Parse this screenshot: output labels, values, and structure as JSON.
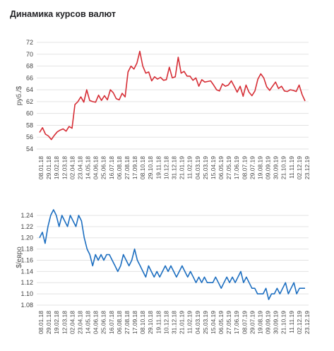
{
  "title": "Динамика курсов валют",
  "chart_data": [
    {
      "type": "line",
      "ylabel": "руб./$",
      "ylim": [
        54,
        72
      ],
      "yticks": [
        54,
        56,
        58,
        60,
        62,
        64,
        66,
        68,
        70,
        72
      ],
      "color": "#d62d35",
      "grid": true,
      "xticks": [
        "08.01.18",
        "29.01.18",
        "19.02.18",
        "12.03.18",
        "02.04.18",
        "23.04.18",
        "14.05.18",
        "04.06.18",
        "25.06.18",
        "16.07.18",
        "06.08.18",
        "27.08.18",
        "17.09.18",
        "08.10.18",
        "29.10.18",
        "19.11.18",
        "10.12.18",
        "31.12.18",
        "21.01.19",
        "11.02.19",
        "04.03.19",
        "25.03.19",
        "15.04.19",
        "06.05.19",
        "27.05.19",
        "17.06.19",
        "08.07.19",
        "29.07.19",
        "19.08.19",
        "09.09.19",
        "30.09.19",
        "21.10.19",
        "11.11.19",
        "02.12.19",
        "23.12.19"
      ],
      "series": [
        {
          "values": [
            56.8,
            57.6,
            56.5,
            56.2,
            55.6,
            56.3,
            56.9,
            57.2,
            57.4,
            57.0,
            57.8,
            57.5,
            61.5,
            62.0,
            62.8,
            61.9,
            64.0,
            62.2,
            62.0,
            61.9,
            63.1,
            62.2,
            63.0,
            62.3,
            64.0,
            63.5,
            62.5,
            62.3,
            63.4,
            62.8,
            67.0,
            68.0,
            67.5,
            68.5,
            70.5,
            68.0,
            66.8,
            67.0,
            65.5,
            66.2,
            65.8,
            66.1,
            65.6,
            65.7,
            67.8,
            66.0,
            66.2,
            69.5,
            66.8,
            67.1,
            66.3,
            66.3,
            65.6,
            66.0,
            64.6,
            65.7,
            65.3,
            65.4,
            65.5,
            64.8,
            64.0,
            63.8,
            65.0,
            64.6,
            64.8,
            65.5,
            64.6,
            63.6,
            64.6,
            62.9,
            64.8,
            63.6,
            63.0,
            63.8,
            65.8,
            66.7,
            66.0,
            64.5,
            63.9,
            64.6,
            65.3,
            64.2,
            64.6,
            63.8,
            63.7,
            64.0,
            63.9,
            63.7,
            64.8,
            63.2,
            62.1
          ]
        }
      ]
    },
    {
      "type": "line",
      "ylabel": "$/евро",
      "ylim": [
        1.08,
        1.25
      ],
      "yticks": [
        1.08,
        1.1,
        1.12,
        1.14,
        1.16,
        1.18,
        1.2,
        1.22,
        1.24
      ],
      "color": "#1c6ec0",
      "grid": true,
      "xticks": [
        "08.01.18",
        "29.01.18",
        "19.02.18",
        "12.03.18",
        "02.04.18",
        "23.04.18",
        "14.05.18",
        "04.06.18",
        "25.06.18",
        "16.07.18",
        "06.08.18",
        "27.08.18",
        "17.09.18",
        "08.10.18",
        "29.10.18",
        "19.11.18",
        "10.12.18",
        "31.12.18",
        "21.01.19",
        "11.02.19",
        "04.03.19",
        "25.03.19",
        "15.04.19",
        "06.05.19",
        "27.05.19",
        "17.06.19",
        "08.07.19",
        "29.07.19",
        "19.08.19",
        "09.09.19",
        "30.09.19",
        "21.10.19",
        "11.11.19",
        "02.12.19",
        "23.12.19"
      ],
      "series": [
        {
          "values": [
            1.2,
            1.21,
            1.19,
            1.22,
            1.24,
            1.25,
            1.24,
            1.22,
            1.24,
            1.23,
            1.22,
            1.24,
            1.23,
            1.22,
            1.24,
            1.23,
            1.2,
            1.18,
            1.17,
            1.15,
            1.17,
            1.16,
            1.17,
            1.16,
            1.17,
            1.17,
            1.16,
            1.15,
            1.14,
            1.15,
            1.17,
            1.16,
            1.15,
            1.16,
            1.18,
            1.16,
            1.15,
            1.14,
            1.13,
            1.15,
            1.14,
            1.13,
            1.14,
            1.13,
            1.14,
            1.15,
            1.14,
            1.15,
            1.14,
            1.13,
            1.14,
            1.15,
            1.14,
            1.13,
            1.14,
            1.13,
            1.12,
            1.13,
            1.12,
            1.13,
            1.12,
            1.12,
            1.12,
            1.13,
            1.12,
            1.11,
            1.12,
            1.13,
            1.12,
            1.13,
            1.12,
            1.13,
            1.14,
            1.12,
            1.13,
            1.12,
            1.11,
            1.11,
            1.1,
            1.1,
            1.1,
            1.11,
            1.09,
            1.1,
            1.1,
            1.11,
            1.1,
            1.11,
            1.12,
            1.1,
            1.11,
            1.12,
            1.1,
            1.11,
            1.11,
            1.11
          ]
        }
      ]
    }
  ]
}
